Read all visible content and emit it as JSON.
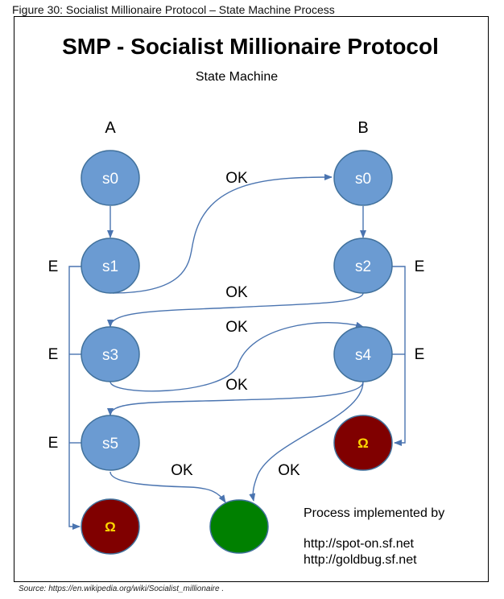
{
  "figure_caption": "Figure 30: Socialist Millionaire Protocol – State Machine Process",
  "source_caption": "Source: https://en.wikipedia.org/wiki/Socialist_millionaire .",
  "title": "SMP - Socialist Millionaire Protocol",
  "subtitle": "State Machine",
  "columns": {
    "a": "A",
    "b": "B"
  },
  "nodes": {
    "a_s0": "s0",
    "a_s1": "s1",
    "a_s3": "s3",
    "a_s5": "s5",
    "b_s0": "s0",
    "b_s2": "s2",
    "b_s4": "s4",
    "omega_left": "Ω",
    "omega_right": "Ω"
  },
  "edges": {
    "ok_s1_to_s0": "OK",
    "ok_s2_to_s3": "OK",
    "ok_s3_to_s4": "OK",
    "ok_s4_to_s5": "OK",
    "ok_s5_to_end": "OK",
    "ok_s4_to_end": "OK",
    "err_s1": "E",
    "err_s3": "E",
    "err_s5": "E",
    "err_s2": "E",
    "err_s4": "E"
  },
  "note": {
    "heading": "Process implemented by",
    "url1": "http://spot-on.sf.net",
    "url2": "http://goldbug.sf.net"
  },
  "colors": {
    "state_node": "#6b9bd2",
    "state_border": "#41719c",
    "omega_node": "#800000",
    "end_node": "#008000",
    "edge": "#4a74b0",
    "omega_text": "#ffd700"
  }
}
